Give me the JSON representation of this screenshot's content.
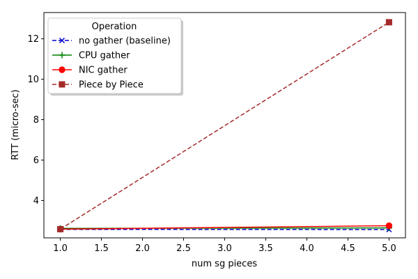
{
  "chart_data": {
    "type": "line",
    "xlabel": "num sg pieces",
    "ylabel": "RTT (micro-sec)",
    "xlim": [
      0.8,
      5.2
    ],
    "ylim": [
      2.15,
      13.3
    ],
    "xticks": [
      "1.0",
      "1.5",
      "2.0",
      "2.5",
      "3.0",
      "3.5",
      "4.0",
      "4.5",
      "5.0"
    ],
    "yticks": [
      "4",
      "6",
      "8",
      "10",
      "12"
    ],
    "grid": false,
    "legend": {
      "title": "Operation",
      "placement": "top-left"
    },
    "series": [
      {
        "name": "no gather (baseline)",
        "x": [
          1.0,
          5.0
        ],
        "y": [
          2.57,
          2.56
        ],
        "color": "#0000cc",
        "dash": "dashed",
        "marker": "x"
      },
      {
        "name": "CPU gather",
        "x": [
          1.0,
          5.0
        ],
        "y": [
          2.62,
          2.64
        ],
        "color": "#008000",
        "dash": "solid",
        "marker": "+"
      },
      {
        "name": "NIC gather",
        "x": [
          1.0,
          5.0
        ],
        "y": [
          2.58,
          2.75
        ],
        "color": "#ff0000",
        "dash": "solid",
        "marker": "o"
      },
      {
        "name": "Piece by Piece",
        "x": [
          1.0,
          5.0
        ],
        "y": [
          2.58,
          12.82
        ],
        "color": "#a52a2a",
        "dash": "dashed",
        "marker": "s"
      }
    ]
  }
}
